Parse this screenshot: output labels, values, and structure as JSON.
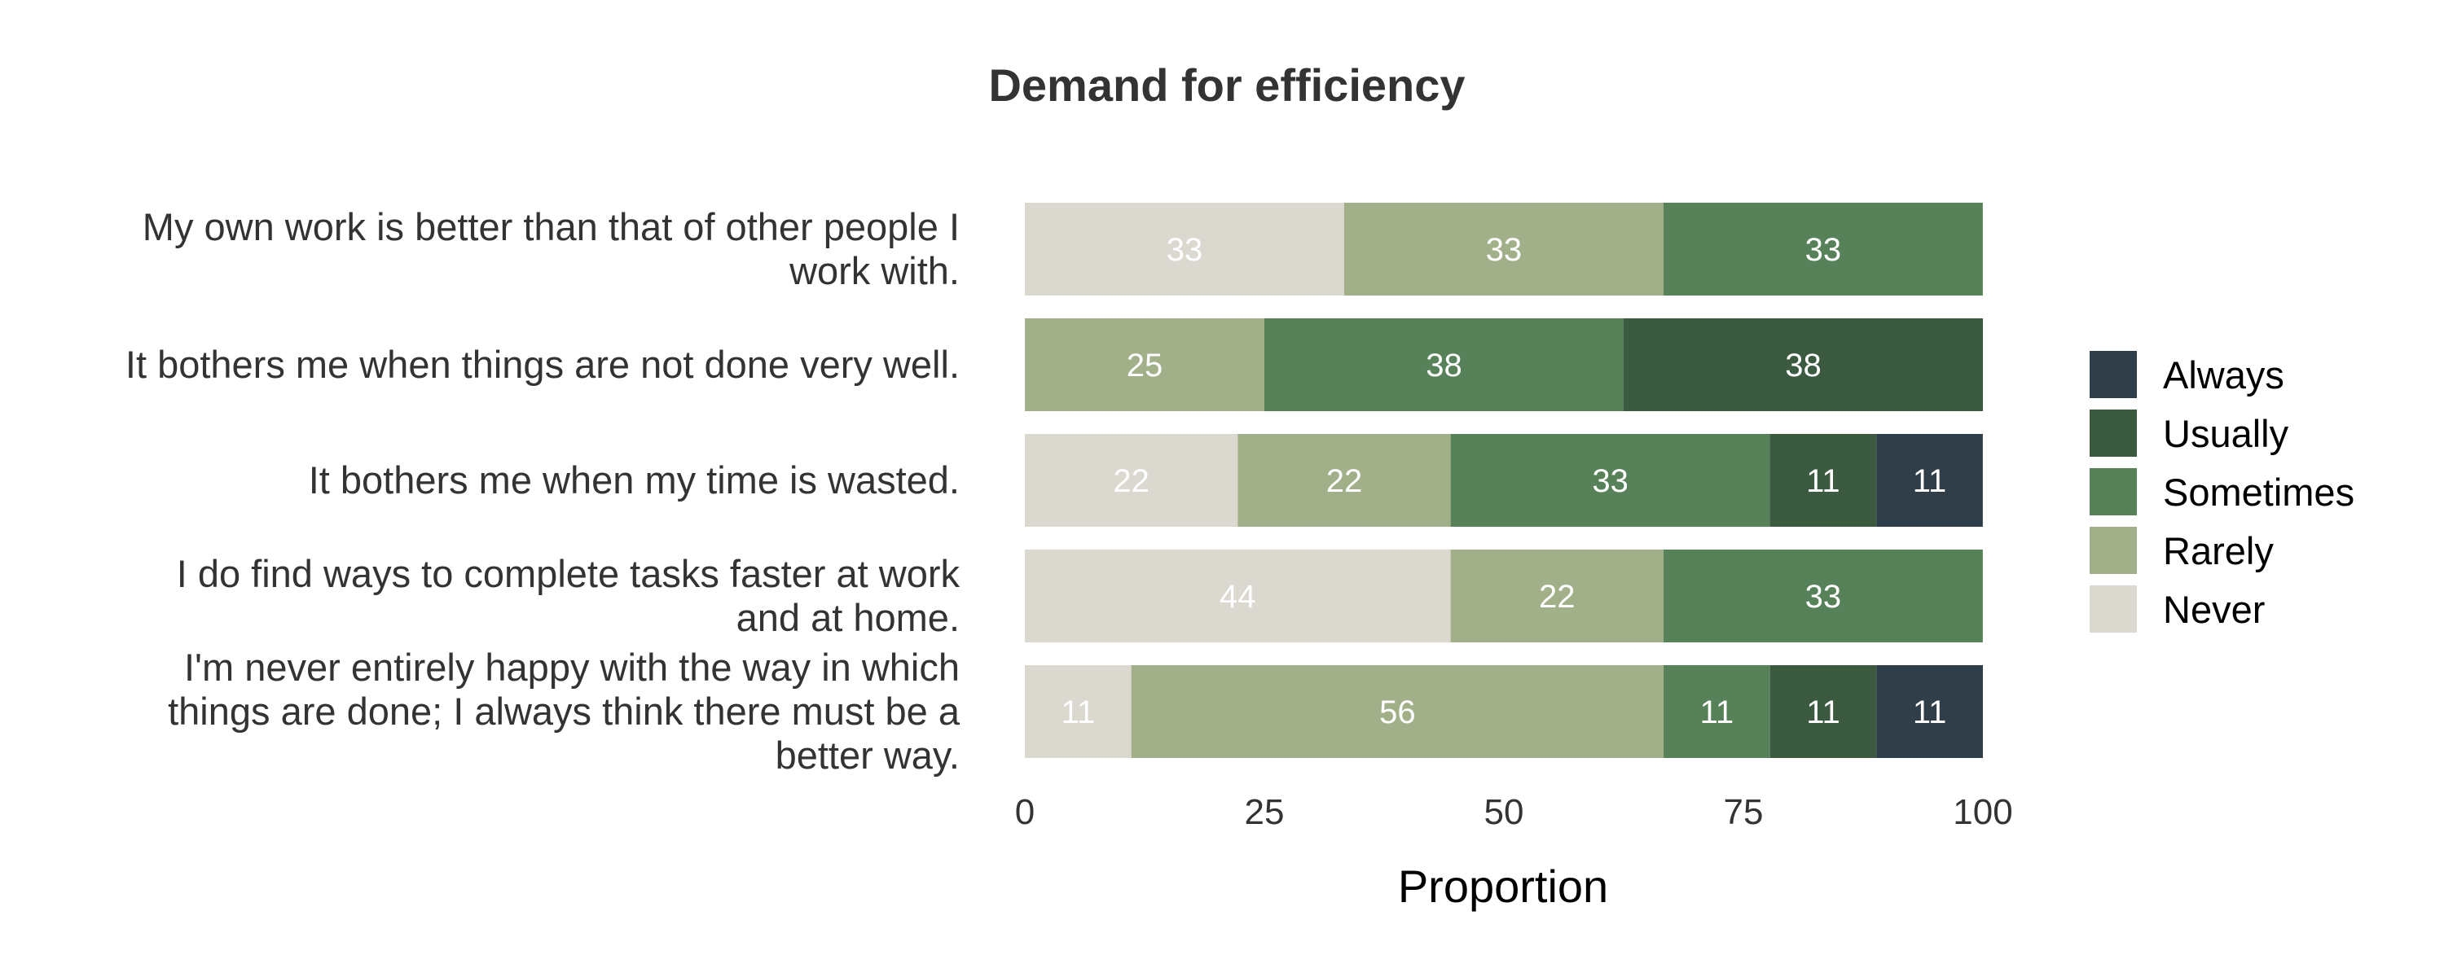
{
  "chart_data": {
    "type": "bar",
    "orientation": "horizontal",
    "stacked": true,
    "title": "Demand for efficiency",
    "xlabel": "Proportion",
    "ylabel": "",
    "xlim": [
      0,
      100
    ],
    "xticks": [
      "0",
      "25",
      "50",
      "75",
      "100"
    ],
    "grid": false,
    "legend_position": "right",
    "categories": [
      [
        "My own work is better than that of other people I",
        "work with."
      ],
      [
        "It bothers me when things are not done very well."
      ],
      [
        "It bothers me when my time is wasted."
      ],
      [
        "I do find ways to complete tasks faster at work",
        "and at home."
      ],
      [
        "I'm never entirely happy with the way in which",
        "things are done; I always think there must be a",
        "better way."
      ]
    ],
    "series": [
      {
        "name": "Never",
        "color": "#dad8cf",
        "values": [
          33.33,
          0,
          22.22,
          44.44,
          11.11
        ],
        "labels": [
          "33",
          "",
          "22",
          "44",
          "11"
        ]
      },
      {
        "name": "Rarely",
        "color": "#a2b089",
        "values": [
          33.33,
          25,
          22.22,
          22.22,
          55.56
        ],
        "labels": [
          "33",
          "25",
          "22",
          "22",
          "56"
        ]
      },
      {
        "name": "Sometimes",
        "color": "#578259",
        "values": [
          33.33,
          37.5,
          33.33,
          33.33,
          11.11
        ],
        "labels": [
          "33",
          "38",
          "33",
          "33",
          "11"
        ]
      },
      {
        "name": "Usually",
        "color": "#3b5a40",
        "values": [
          0,
          37.5,
          11.11,
          0,
          11.11
        ],
        "labels": [
          "",
          "38",
          "11",
          "",
          "11"
        ]
      },
      {
        "name": "Always",
        "color": "#2f3e48",
        "values": [
          0,
          0,
          11.11,
          0,
          11.11
        ],
        "labels": [
          "",
          "",
          "11",
          "",
          "11"
        ]
      }
    ],
    "legend_order": [
      "Always",
      "Usually",
      "Sometimes",
      "Rarely",
      "Never"
    ]
  }
}
